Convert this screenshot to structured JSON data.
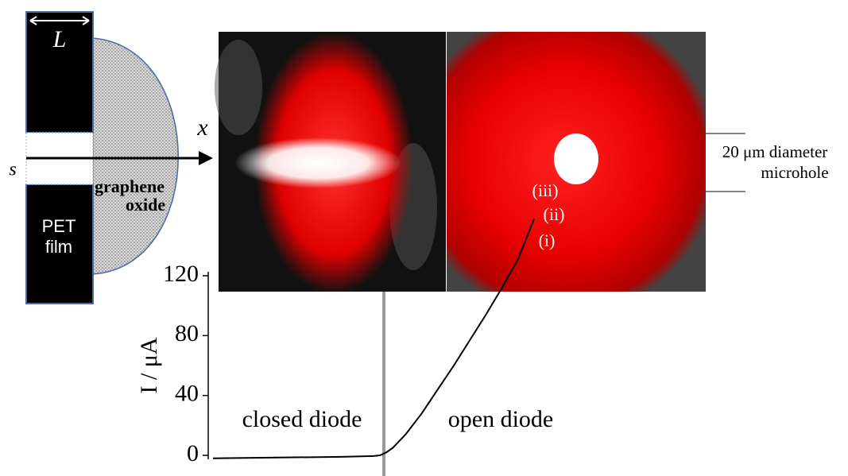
{
  "diagram": {
    "width_label": "L",
    "axis_label": "x",
    "slit_label": "s",
    "coating_label": [
      "graphene",
      "oxide"
    ],
    "film_label": [
      "PET",
      "film"
    ],
    "point_labels": [
      "(iii)",
      "(ii)",
      "(i)"
    ],
    "hole_label": [
      "20 μm diameter",
      "microhole"
    ]
  },
  "chart_data": {
    "type": "line",
    "ylabel": "I / μA",
    "annotations": [
      "closed diode",
      "open diode"
    ],
    "ylim": [
      0,
      120
    ],
    "yticks": [
      0,
      40,
      80,
      120
    ],
    "xlim": [
      0,
      100
    ],
    "series": [
      {
        "color": "#000000",
        "x": [
          0,
          20,
          40,
          50,
          52,
          54,
          56,
          60,
          65,
          70,
          75,
          80,
          85,
          90,
          95,
          100
        ],
        "values": [
          -2,
          -1.5,
          -1,
          -0.5,
          0,
          2,
          5,
          14,
          28,
          44,
          60,
          77,
          94,
          112,
          131,
          158
        ]
      }
    ]
  }
}
